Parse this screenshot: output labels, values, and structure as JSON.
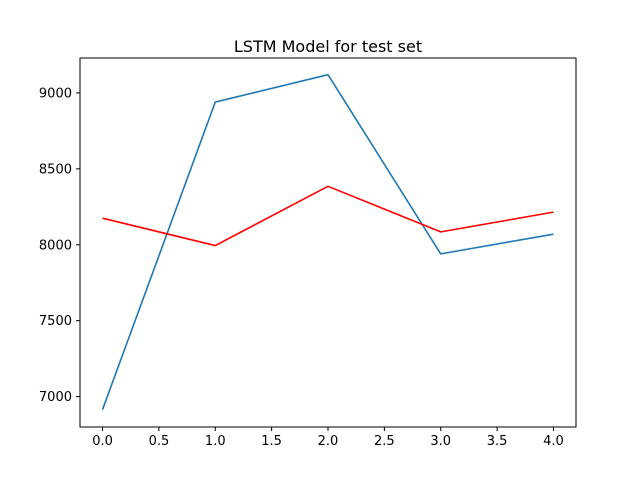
{
  "chart_data": {
    "type": "line",
    "title": "LSTM Model for test set",
    "xlabel": "",
    "ylabel": "",
    "x": [
      0,
      1,
      2,
      3,
      4
    ],
    "xlim": [
      -0.2,
      4.2
    ],
    "ylim": [
      6800,
      9230
    ],
    "xticks": [
      0.0,
      0.5,
      1.0,
      1.5,
      2.0,
      2.5,
      3.0,
      3.5,
      4.0
    ],
    "xtick_labels": [
      "0.0",
      "0.5",
      "1.0",
      "1.5",
      "2.0",
      "2.5",
      "3.0",
      "3.5",
      "4.0"
    ],
    "yticks": [
      7000,
      7500,
      8000,
      8500,
      9000
    ],
    "ytick_labels": [
      "7000",
      "7500",
      "8000",
      "8500",
      "9000"
    ],
    "grid": false,
    "legend": "none",
    "series": [
      {
        "color": "#1f77b4",
        "values": [
          6915,
          8940,
          9120,
          7940,
          8070
        ]
      },
      {
        "color": "#ff0000",
        "values": [
          8175,
          7995,
          8385,
          8085,
          8215
        ]
      }
    ]
  }
}
